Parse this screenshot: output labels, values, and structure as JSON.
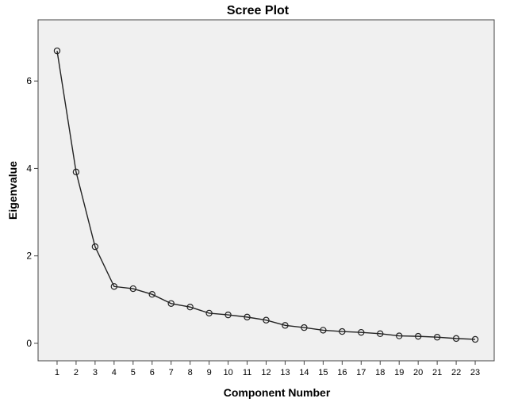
{
  "chart_data": {
    "type": "line",
    "title": "Scree Plot",
    "xlabel": "Component Number",
    "ylabel": "Eigenvalue",
    "x": [
      1,
      2,
      3,
      4,
      5,
      6,
      7,
      8,
      9,
      10,
      11,
      12,
      13,
      14,
      15,
      16,
      17,
      18,
      19,
      20,
      21,
      22,
      23
    ],
    "xtick_labels": [
      "1",
      "2",
      "3",
      "4",
      "5",
      "6",
      "7",
      "8",
      "9",
      "10",
      "11",
      "12",
      "13",
      "14",
      "15",
      "16",
      "17",
      "18",
      "19",
      "20",
      "21",
      "22",
      "23"
    ],
    "ytick_values": [
      0,
      2,
      4,
      6
    ],
    "ytick_labels": [
      "0",
      "2",
      "4",
      "6"
    ],
    "xlim": [
      0,
      24
    ],
    "ylim": [
      -0.4,
      7.4
    ],
    "series": [
      {
        "values": [
          6.69,
          3.92,
          2.21,
          1.3,
          1.25,
          1.12,
          0.91,
          0.83,
          0.69,
          0.65,
          0.6,
          0.53,
          0.41,
          0.36,
          0.3,
          0.27,
          0.25,
          0.22,
          0.17,
          0.16,
          0.14,
          0.11,
          0.09
        ],
        "marker": "open-circle",
        "color": "#222222"
      }
    ],
    "grid": false,
    "legend": "none",
    "plot_background": "#f0f0f0",
    "frame_color": "#444444"
  }
}
